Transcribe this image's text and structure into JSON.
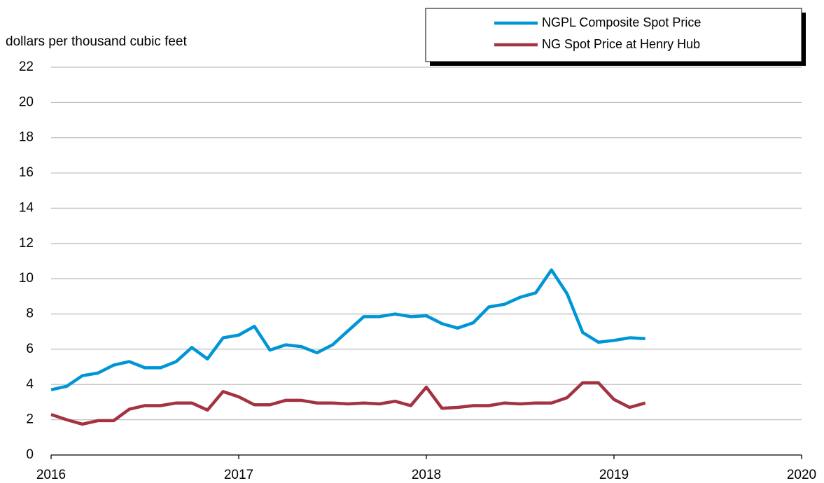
{
  "chart_data": {
    "type": "line",
    "ylabel": "dollars per thousand cubic feet",
    "x": [
      2016,
      2016.0833,
      2016.1667,
      2016.25,
      2016.3333,
      2016.4167,
      2016.5,
      2016.5833,
      2016.6667,
      2016.75,
      2016.8333,
      2016.9167,
      2017,
      2017.0833,
      2017.1667,
      2017.25,
      2017.3333,
      2017.4167,
      2017.5,
      2017.5833,
      2017.6667,
      2017.75,
      2017.8333,
      2017.9167,
      2018,
      2018.0833,
      2018.1667,
      2018.25,
      2018.3333,
      2018.4167,
      2018.5,
      2018.5833,
      2018.6667,
      2018.75,
      2018.8333,
      2018.9167,
      2019,
      2019.0833,
      2019.1667
    ],
    "series": [
      {
        "name": "NGPL Composite Spot Price",
        "color": "#0096d6",
        "values": [
          3.7,
          3.9,
          4.5,
          4.65,
          5.1,
          5.3,
          4.95,
          4.95,
          5.3,
          6.1,
          5.45,
          6.65,
          6.8,
          7.3,
          5.95,
          6.25,
          6.15,
          5.8,
          6.25,
          7.05,
          7.85,
          7.85,
          8.0,
          7.85,
          7.9,
          7.45,
          7.2,
          7.5,
          8.4,
          8.55,
          8.95,
          9.2,
          10.5,
          9.15,
          6.95,
          6.4,
          6.5,
          6.65,
          6.6
        ]
      },
      {
        "name": "NG Spot Price at Henry Hub",
        "color": "#a33340",
        "values": [
          2.3,
          2.0,
          1.75,
          1.95,
          1.95,
          2.6,
          2.8,
          2.8,
          2.95,
          2.95,
          2.55,
          3.6,
          3.3,
          2.85,
          2.85,
          3.1,
          3.1,
          2.95,
          2.95,
          2.9,
          2.95,
          2.9,
          3.05,
          2.8,
          3.85,
          2.65,
          2.7,
          2.8,
          2.8,
          2.95,
          2.9,
          2.95,
          2.95,
          3.25,
          4.1,
          4.1,
          3.15,
          2.7,
          2.95
        ]
      }
    ],
    "xlim": [
      2016,
      2020
    ],
    "xticks": [
      2016,
      2017,
      2018,
      2019,
      2020
    ],
    "ylim": [
      0,
      22
    ],
    "yticks": [
      0,
      2,
      4,
      6,
      8,
      10,
      12,
      14,
      16,
      18,
      20,
      22
    ],
    "grid": true,
    "legend": "top-right"
  }
}
